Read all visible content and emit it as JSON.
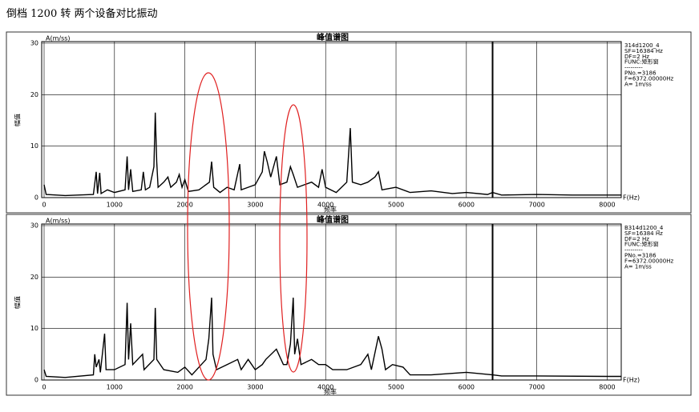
{
  "heading": "倒档 1200 转  两个设备对比振动",
  "chart_data": [
    {
      "type": "line",
      "title": "峰值谱图",
      "y_unit": "A(m/ss)",
      "x_unit": "F(Hz)",
      "ylabel": "幅值",
      "xlabel": "频率",
      "info": [
        "314d1200_4",
        "SF=16384 Hz",
        "DF=2 Hz",
        "FUNC:矩形窗",
        "---------",
        "PNo.=3186",
        "F=6372.00000Hz",
        "A= 1m/ss"
      ],
      "cursor": 6372,
      "color": "#000000",
      "grid": true,
      "xlim": [
        0,
        8200
      ],
      "ylim": [
        0,
        30
      ],
      "xticks": [
        0,
        1000,
        2000,
        3000,
        4000,
        5000,
        6000,
        7000,
        8000
      ],
      "yticks": [
        0,
        10,
        20,
        30
      ],
      "x": [
        0,
        30,
        300,
        700,
        740,
        760,
        790,
        810,
        900,
        1000,
        1150,
        1180,
        1200,
        1230,
        1260,
        1380,
        1410,
        1440,
        1500,
        1560,
        1580,
        1600,
        1620,
        1700,
        1760,
        1800,
        1880,
        1920,
        1960,
        2000,
        2050,
        2200,
        2350,
        2380,
        2410,
        2500,
        2600,
        2700,
        2780,
        2800,
        2900,
        3000,
        3100,
        3130,
        3170,
        3220,
        3300,
        3350,
        3450,
        3500,
        3540,
        3600,
        3700,
        3800,
        3900,
        3950,
        4000,
        4150,
        4300,
        4350,
        4380,
        4500,
        4600,
        4700,
        4750,
        4800,
        5000,
        5200,
        5500,
        5800,
        6000,
        6300,
        6372,
        6500,
        7000,
        7500,
        8000,
        8200
      ],
      "values": [
        2.5,
        0.6,
        0.4,
        0.6,
        5,
        0.8,
        4.8,
        0.8,
        1.5,
        1,
        1.5,
        8,
        1.5,
        5.5,
        1.2,
        1.5,
        5,
        1.5,
        2,
        6,
        16.5,
        7,
        2,
        3,
        4,
        2,
        3,
        4.5,
        2,
        3.5,
        1.2,
        1.5,
        3,
        7,
        2,
        1,
        2,
        1.5,
        6.5,
        1.5,
        2,
        2.5,
        5,
        9,
        7,
        4,
        8,
        2.5,
        3,
        6,
        4.5,
        2,
        2.5,
        3,
        2,
        5.5,
        2,
        1,
        3,
        13.5,
        3,
        2.5,
        3,
        4,
        5,
        1.5,
        2,
        1,
        1.3,
        0.8,
        1,
        0.6,
        1,
        0.5,
        0.6,
        0.5,
        0.5,
        0.5
      ]
    },
    {
      "type": "line",
      "title": "峰值谱图",
      "y_unit": "A(m/ss)",
      "x_unit": "F(Hz)",
      "ylabel": "幅值",
      "xlabel": "频率",
      "info": [
        "B314d1200_4",
        "SF=16384 Hz",
        "DF=2 Hz",
        "FUNC:矩形窗",
        "---------",
        "PNo.=3186",
        "F=6372.00000Hz",
        "A= 1m/ss"
      ],
      "cursor": 6372,
      "color": "#000000",
      "grid": true,
      "xlim": [
        0,
        8200
      ],
      "ylim": [
        0,
        30
      ],
      "xticks": [
        0,
        1000,
        2000,
        3000,
        4000,
        5000,
        6000,
        7000,
        8000
      ],
      "yticks": [
        0,
        10,
        20,
        30
      ],
      "x": [
        0,
        30,
        300,
        700,
        720,
        740,
        780,
        800,
        860,
        880,
        1000,
        1150,
        1180,
        1200,
        1230,
        1260,
        1400,
        1420,
        1560,
        1580,
        1600,
        1700,
        1900,
        2000,
        2100,
        2300,
        2340,
        2380,
        2400,
        2450,
        2600,
        2750,
        2800,
        2900,
        3000,
        3100,
        3150,
        3300,
        3400,
        3450,
        3500,
        3540,
        3560,
        3600,
        3650,
        3800,
        3900,
        4000,
        4100,
        4300,
        4500,
        4600,
        4650,
        4750,
        4800,
        4850,
        4950,
        5100,
        5200,
        5500,
        6000,
        6372,
        6500,
        7000,
        8000,
        8200
      ],
      "values": [
        2,
        0.7,
        0.5,
        1,
        5,
        2.5,
        4,
        1.5,
        9,
        2,
        2,
        3,
        15,
        4,
        11,
        3,
        5,
        2,
        4,
        14,
        4,
        2,
        1.5,
        2.5,
        1,
        4,
        8,
        16,
        5,
        2,
        3,
        4,
        2,
        4,
        2,
        3,
        4,
        6,
        3,
        3,
        7,
        16,
        5,
        8,
        3,
        4,
        3,
        3,
        2,
        2,
        3,
        5,
        2,
        8.5,
        6,
        2,
        3,
        2.5,
        1,
        1,
        1.5,
        1,
        0.8,
        0.8,
        0.7,
        0.7
      ]
    }
  ]
}
